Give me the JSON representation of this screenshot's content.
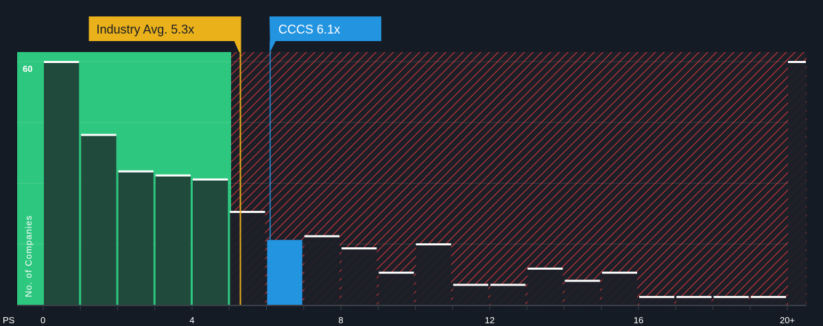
{
  "chart_data": {
    "type": "bar",
    "xlabel": "PS",
    "ylabel": "No. of Companies",
    "x_tick_labels": [
      "0",
      "4",
      "8",
      "12",
      "16",
      "20+"
    ],
    "y_tick_labels": [
      "60"
    ],
    "ylim": [
      0,
      60
    ],
    "bins": [
      "0-1",
      "1-2",
      "2-3",
      "3-4",
      "4-5",
      "5-6",
      "6-7",
      "7-8",
      "8-9",
      "9-10",
      "10-11",
      "11-12",
      "12-13",
      "13-14",
      "14-15",
      "15-16",
      "16-17",
      "17-18",
      "18-19",
      "19-20",
      "20+"
    ],
    "values": [
      60,
      42,
      33,
      32,
      31,
      23,
      16,
      17,
      14,
      8,
      15,
      5,
      5,
      9,
      6,
      8,
      2,
      2,
      2,
      2,
      60
    ],
    "highlight_bin_index": 6,
    "industry_avg": {
      "label": "Industry Avg. 5.3x",
      "value": 5.3
    },
    "company": {
      "label": "CCCS 6.1x",
      "value": 6.1
    },
    "fair_range_max": 5.05,
    "grid": true,
    "colors": {
      "background": "#151b24",
      "fair_region": "#2ec77f",
      "bar_in_fair": "#1f4a3c",
      "bar_other": "#1c1f27",
      "hatch": "#e0393e",
      "industry": "#eab11b",
      "company": "#2394e0"
    }
  }
}
